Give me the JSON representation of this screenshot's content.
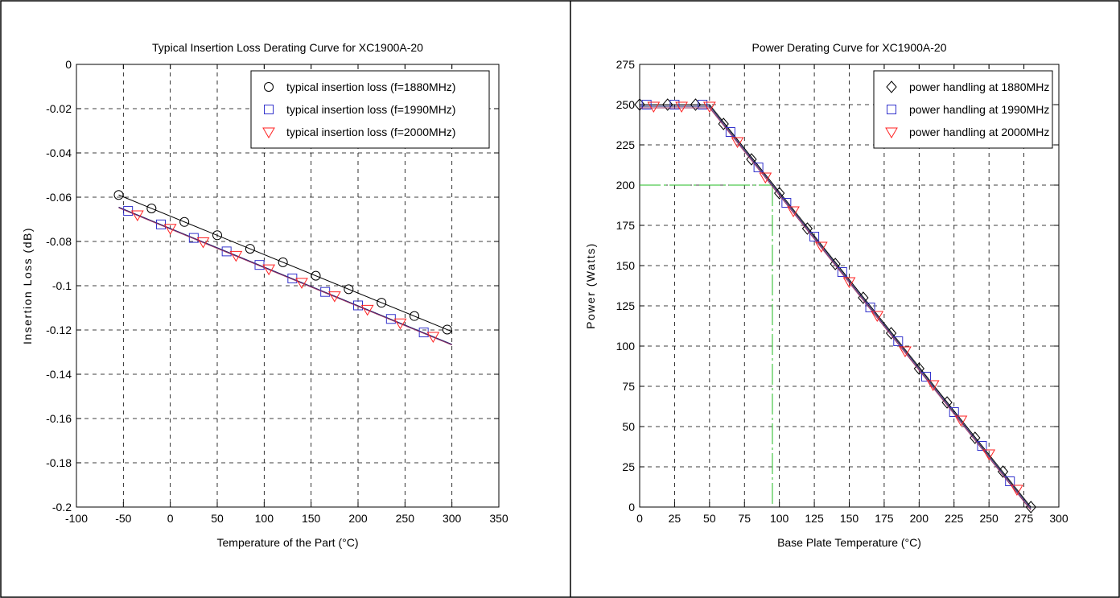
{
  "colors": {
    "black": "#000000",
    "blue": "#3333cc",
    "red": "#ff2222",
    "navy_fit": "#1a1a66",
    "purple_fit": "#993366",
    "green": "#22bb22",
    "grid": "#000000"
  },
  "chart_data": [
    {
      "type": "line",
      "title": "Typical Insertion Loss Derating Curve for XC1900A-20",
      "xlabel": "Temperature of the Part (°C)",
      "ylabel": "Insertion Loss (dB)",
      "xlim": [
        -100,
        350
      ],
      "ylim": [
        -0.2,
        0
      ],
      "xticks": [
        -100,
        -50,
        0,
        50,
        100,
        150,
        200,
        250,
        300,
        350
      ],
      "yticks": [
        -0.2,
        -0.18,
        -0.16,
        -0.14,
        -0.12,
        -0.1,
        -0.08,
        -0.06,
        -0.04,
        -0.02,
        0
      ],
      "grid": true,
      "legend_position": "top-right",
      "series": [
        {
          "name": "typical insertion loss (f=1880MHz)",
          "marker": "circle",
          "color": "#000000",
          "points": [
            [
              -55,
              -0.059
            ],
            [
              -20,
              -0.0651
            ],
            [
              15,
              -0.0712
            ],
            [
              50,
              -0.0772
            ],
            [
              85,
              -0.0833
            ],
            [
              120,
              -0.0894
            ],
            [
              155,
              -0.0955
            ],
            [
              190,
              -0.1016
            ],
            [
              225,
              -0.1077
            ],
            [
              260,
              -0.1137
            ],
            [
              295,
              -0.1198
            ]
          ],
          "fit": [
            [
              -55,
              -0.059
            ],
            [
              300,
              -0.1207
            ]
          ]
        },
        {
          "name": "typical insertion loss (f=1990MHz)",
          "marker": "square",
          "color": "#3333cc",
          "points": [
            [
              -45,
              -0.0662
            ],
            [
              -10,
              -0.0723
            ],
            [
              25,
              -0.0784
            ],
            [
              60,
              -0.0845
            ],
            [
              95,
              -0.0906
            ],
            [
              130,
              -0.0967
            ],
            [
              165,
              -0.1028
            ],
            [
              200,
              -0.1089
            ],
            [
              235,
              -0.115
            ],
            [
              270,
              -0.1211
            ]
          ],
          "fit": [
            [
              -55,
              -0.0645
            ],
            [
              300,
              -0.1265
            ]
          ]
        },
        {
          "name": "typical insertion loss (f=2000MHz)",
          "marker": "triangle-down",
          "color": "#ff2222",
          "points": [
            [
              -35,
              -0.068
            ],
            [
              0,
              -0.0741
            ],
            [
              35,
              -0.0802
            ],
            [
              70,
              -0.0863
            ],
            [
              105,
              -0.0924
            ],
            [
              140,
              -0.0985
            ],
            [
              175,
              -0.1046
            ],
            [
              210,
              -0.1107
            ],
            [
              245,
              -0.1168
            ],
            [
              280,
              -0.1229
            ]
          ],
          "fit": [
            [
              -55,
              -0.0648
            ],
            [
              300,
              -0.1268
            ]
          ]
        }
      ]
    },
    {
      "type": "line",
      "title": "Power Derating Curve for XC1900A-20",
      "xlabel": "Base Plate Temperature (°C)",
      "ylabel": "Power (Watts)",
      "xlim": [
        0,
        300
      ],
      "ylim": [
        0,
        275
      ],
      "xticks": [
        0,
        25,
        50,
        75,
        100,
        125,
        150,
        175,
        200,
        225,
        250,
        275,
        300
      ],
      "yticks": [
        0,
        25,
        50,
        75,
        100,
        125,
        150,
        175,
        200,
        225,
        250,
        275
      ],
      "grid": true,
      "legend_position": "top-right",
      "reference": {
        "x": 95,
        "y": 200
      },
      "series": [
        {
          "name": "power handling at 1880MHz",
          "marker": "diamond",
          "color": "#000000",
          "points": [
            [
              0,
              250
            ],
            [
              20,
              250
            ],
            [
              40,
              250
            ],
            [
              60,
              238
            ],
            [
              80,
              216
            ],
            [
              100,
              195
            ],
            [
              120,
              173
            ],
            [
              140,
              151
            ],
            [
              160,
              130
            ],
            [
              180,
              108
            ],
            [
              200,
              86
            ],
            [
              220,
              65
            ],
            [
              240,
              43
            ],
            [
              260,
              22
            ],
            [
              280,
              0
            ]
          ],
          "fit": [
            [
              0,
              250
            ],
            [
              50,
              250
            ],
            [
              280,
              0
            ]
          ]
        },
        {
          "name": "power handling at 1990MHz",
          "marker": "square",
          "color": "#3333cc",
          "points": [
            [
              5,
              250
            ],
            [
              25,
              250
            ],
            [
              45,
              250
            ],
            [
              65,
              233
            ],
            [
              85,
              211
            ],
            [
              105,
              189
            ],
            [
              125,
              168
            ],
            [
              145,
              146
            ],
            [
              165,
              124
            ],
            [
              185,
              103
            ],
            [
              205,
              81
            ],
            [
              225,
              59
            ],
            [
              245,
              38
            ],
            [
              265,
              16
            ]
          ],
          "fit": [
            [
              0,
              249
            ],
            [
              50,
              249
            ],
            [
              280,
              -1
            ]
          ]
        },
        {
          "name": "power handling at 2000MHz",
          "marker": "triangle-down",
          "color": "#ff2222",
          "points": [
            [
              10,
              249
            ],
            [
              30,
              249
            ],
            [
              50,
              249
            ],
            [
              70,
              227
            ],
            [
              90,
              205
            ],
            [
              110,
              184
            ],
            [
              130,
              162
            ],
            [
              150,
              140
            ],
            [
              170,
              119
            ],
            [
              190,
              97
            ],
            [
              210,
              76
            ],
            [
              230,
              54
            ],
            [
              250,
              33
            ],
            [
              270,
              11
            ]
          ],
          "fit": [
            [
              0,
              248
            ],
            [
              50,
              248
            ],
            [
              280,
              -2
            ]
          ]
        }
      ]
    }
  ]
}
